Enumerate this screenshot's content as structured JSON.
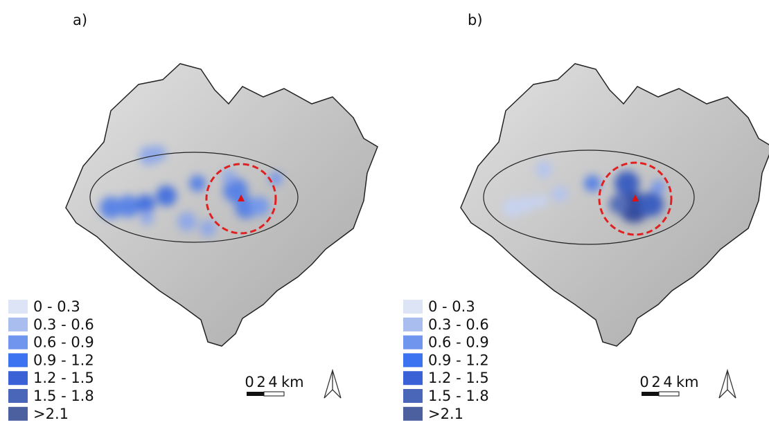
{
  "panels": [
    {
      "label": "a)",
      "legend": [
        {
          "label": "0 - 0.3",
          "color": "#dce4f5"
        },
        {
          "label": "0.3 - 0.6",
          "color": "#aabdef"
        },
        {
          "label": "0.6 - 0.9",
          "color": "#6f95ee"
        },
        {
          "label": "0.9 - 1.2",
          "color": "#3b73f0"
        },
        {
          "label": "1.2 - 1.5",
          "color": "#3a62d6"
        },
        {
          "label": "1.5 - 1.8",
          "color": "#4a66b8"
        },
        {
          "label": ">2.1",
          "color": "#4c5f9e"
        }
      ],
      "scale": {
        "ticks": [
          "0",
          "2",
          "4"
        ],
        "unit": "km"
      }
    },
    {
      "label": "b)",
      "legend": [
        {
          "label": "0 - 0.3",
          "color": "#dce4f5"
        },
        {
          "label": "0.3 - 0.6",
          "color": "#aabdef"
        },
        {
          "label": "0.6 - 0.9",
          "color": "#6f95ee"
        },
        {
          "label": "0.9 - 1.2",
          "color": "#3b73f0"
        },
        {
          "label": "1.2 - 1.5",
          "color": "#3a62d6"
        },
        {
          "label": "1.5 - 1.8",
          "color": "#4a66b8"
        },
        {
          "label": ">2.1",
          "color": "#4c5f9e"
        }
      ],
      "scale": {
        "ticks": [
          "0",
          "2",
          "4"
        ],
        "unit": "km"
      }
    }
  ]
}
